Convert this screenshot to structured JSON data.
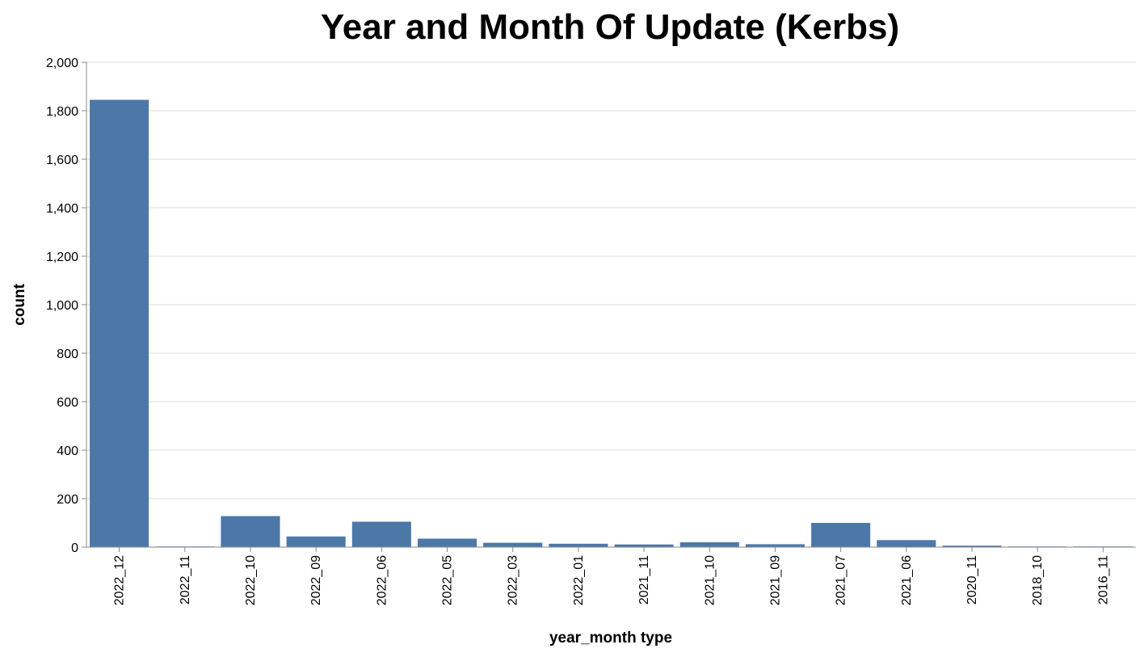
{
  "chart_data": {
    "type": "bar",
    "title": "Year and Month Of Update (Kerbs)",
    "xlabel": "year_month type",
    "ylabel": "count",
    "ylim": [
      0,
      2000
    ],
    "yticks": [
      0,
      200,
      400,
      600,
      800,
      1000,
      1200,
      1400,
      1600,
      1800,
      2000
    ],
    "grid": true,
    "categories": [
      "2022_12",
      "2022_11",
      "2022_10",
      "2022_09",
      "2022_06",
      "2022_05",
      "2022_03",
      "2022_01",
      "2021_11",
      "2021_10",
      "2021_09",
      "2021_07",
      "2021_06",
      "2020_11",
      "2018_10",
      "2016_11"
    ],
    "values": [
      1845,
      2,
      128,
      44,
      105,
      35,
      18,
      14,
      11,
      20,
      12,
      100,
      29,
      6,
      2,
      1
    ],
    "colors": {
      "bar": "#4c78a8",
      "grid": "#dddddd",
      "axis": "#888888",
      "text": "#000000"
    }
  }
}
